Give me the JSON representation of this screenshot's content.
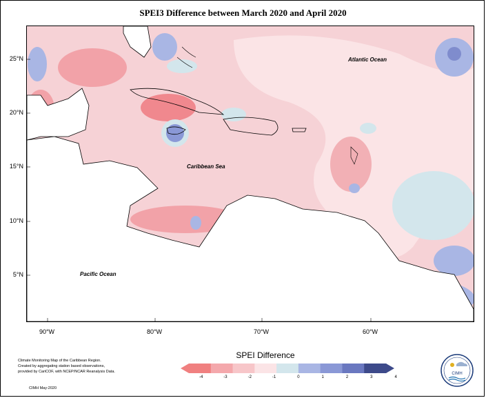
{
  "title": "SPEI3 Difference between March 2020 and April 2020",
  "map": {
    "labels": {
      "atlantic": "Atlantic Ocean",
      "caribbean": "Caribbean Sea",
      "pacific": "Pacific Ocean"
    },
    "lat_ticks": [
      "25°N",
      "20°N",
      "15°N",
      "10°N",
      "5°N"
    ],
    "lon_ticks": [
      "90°W",
      "80°W",
      "70°W",
      "60°W"
    ]
  },
  "legend": {
    "title": "SPEI Difference",
    "ticks": [
      "-4",
      "-3",
      "-2",
      "-1",
      "0",
      "1",
      "2",
      "3",
      "4"
    ],
    "colors": [
      "#f08080",
      "#f4a8ac",
      "#f7c6c9",
      "#fbe4e6",
      "#d3e6ec",
      "#a9b6e4",
      "#8a98d6",
      "#6a78c0",
      "#3d4a8a"
    ]
  },
  "footnote": {
    "line1": "Climate Monitoring Map of the Caribbean Region.",
    "line2": "Created by aggregating station based observations,",
    "line3": "provided by CariCOF, with NCEP/NCAR Reanalysis Data.",
    "credit": "CIMH May-2020"
  },
  "logo": {
    "text": "CIMH"
  }
}
